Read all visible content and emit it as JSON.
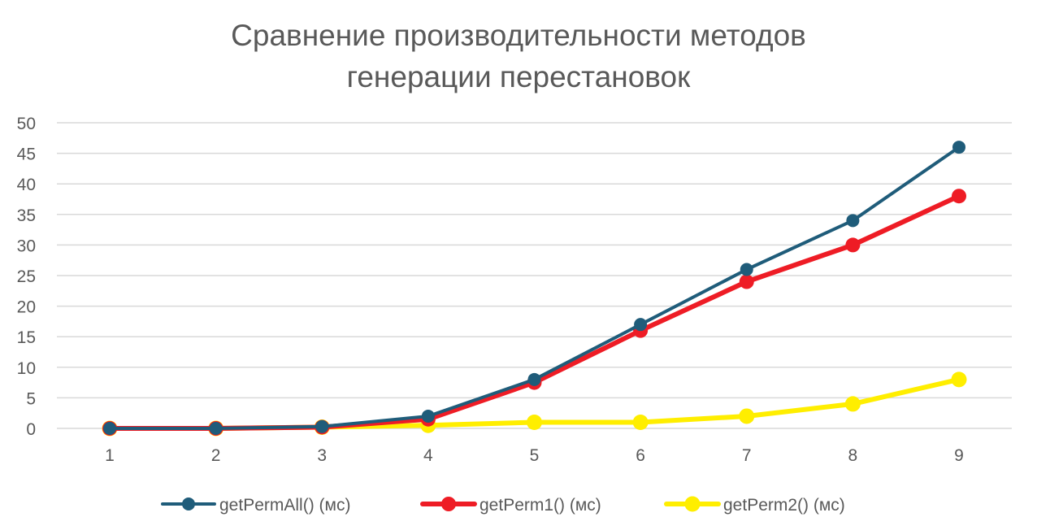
{
  "chart_data": {
    "type": "line",
    "title_lines": [
      "Сравнение производительности методов",
      "генерации перестановок"
    ],
    "xlabel": "",
    "ylabel": "",
    "x": [
      "1",
      "2",
      "3",
      "4",
      "5",
      "6",
      "7",
      "8",
      "9"
    ],
    "y_ticks": [
      "0",
      "5",
      "10",
      "15",
      "20",
      "25",
      "30",
      "35",
      "40",
      "45",
      "50"
    ],
    "ylim": [
      0,
      50
    ],
    "grid": true,
    "legend_position": "bottom",
    "series": [
      {
        "name": "getPermAll() (мс)",
        "color": "#1f5c7a",
        "values": [
          0,
          0,
          0.3,
          2,
          8,
          17,
          26,
          34,
          46
        ]
      },
      {
        "name": "getPerm1() (мс)",
        "color": "#ee1c25",
        "values": [
          0,
          0,
          0.2,
          1.5,
          7.5,
          16,
          24,
          30,
          38
        ]
      },
      {
        "name": "getPerm2() (мс)",
        "color": "#ffee00",
        "values": [
          0,
          0,
          0.2,
          0.5,
          1,
          1,
          2,
          4,
          8
        ]
      }
    ]
  }
}
